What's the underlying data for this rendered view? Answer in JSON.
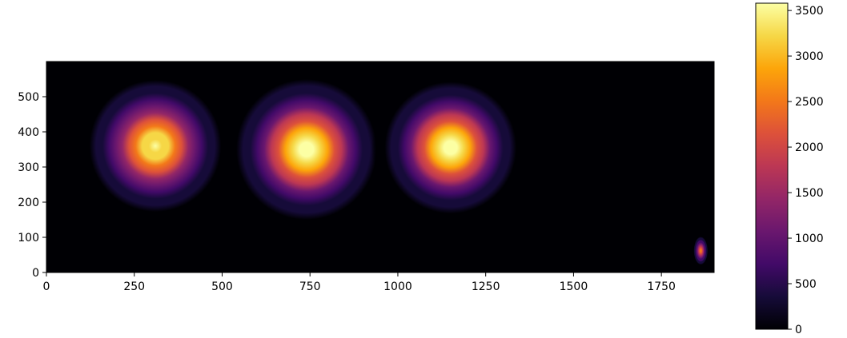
{
  "chart_data": {
    "type": "heatmap",
    "title": "",
    "xlabel": "",
    "ylabel": "",
    "colormap": "inferno",
    "xlim": [
      0,
      1900
    ],
    "ylim": [
      0,
      600
    ],
    "x_ticks": [
      0,
      250,
      500,
      750,
      1000,
      1250,
      1500,
      1750
    ],
    "y_ticks": [
      0,
      100,
      200,
      300,
      400,
      500
    ],
    "colorbar": {
      "range": [
        0,
        3580
      ],
      "ticks": [
        0,
        500,
        1000,
        1500,
        2000,
        2500,
        3000,
        3500
      ]
    },
    "blobs": [
      {
        "x": 310,
        "y": 360,
        "peak": 3500,
        "sigma_x": 75,
        "sigma_y": 75
      },
      {
        "x": 740,
        "y": 350,
        "peak": 3580,
        "sigma_x": 80,
        "sigma_y": 80
      },
      {
        "x": 1150,
        "y": 355,
        "peak": 3580,
        "sigma_x": 75,
        "sigma_y": 75
      },
      {
        "x": 1862,
        "y": 62,
        "peak": 2500,
        "sigma_x": 8,
        "sigma_y": 16
      }
    ],
    "colors": {
      "background": "#000004",
      "axis": "#000000"
    }
  }
}
